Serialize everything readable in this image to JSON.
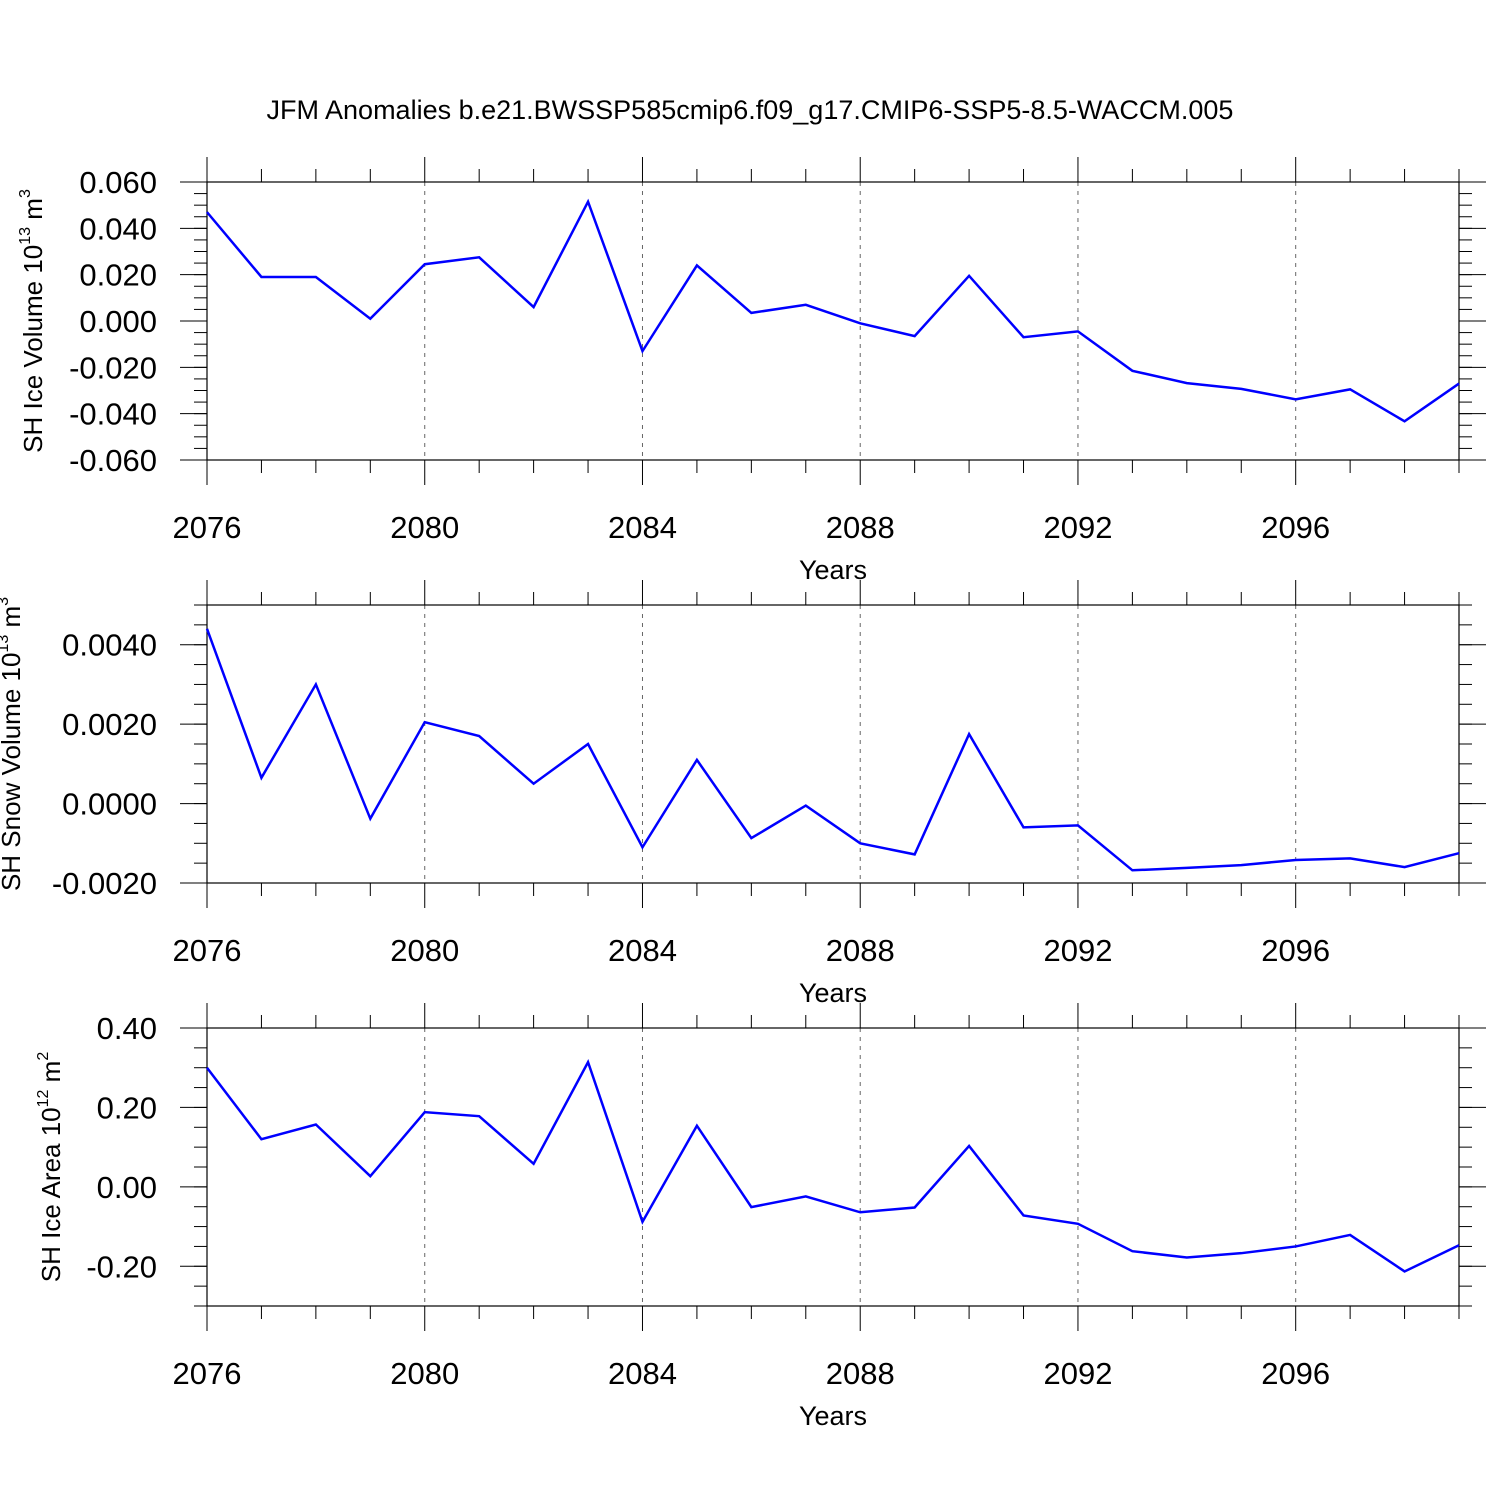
{
  "title": "JFM Anomalies b.e21.BWSSP585cmip6.f09_g17.CMIP6-SSP5-8.5-WACCM.005",
  "line_color": "#0000ff",
  "chart_data": [
    {
      "type": "line",
      "ylabel": "SH Ice Volume 10",
      "ylabel_exp": "13",
      "ylabel_unit": " m",
      "ylabel_unit_exp": "3",
      "xlabel": "Years",
      "xlim": [
        2076,
        2099
      ],
      "ylim": [
        -0.06,
        0.06
      ],
      "x_ticks": [
        "2076",
        "2080",
        "2084",
        "2088",
        "2092",
        "2096"
      ],
      "y_ticks": [
        "0.060",
        "0.040",
        "0.020",
        "0.000",
        "-0.020",
        "-0.040",
        "-0.060"
      ],
      "series": [
        {
          "x": [
            2076,
            2077,
            2078,
            2079,
            2080,
            2081,
            2082,
            2083,
            2084,
            2085,
            2086,
            2087,
            2088,
            2089,
            2090,
            2091,
            2092,
            2093,
            2094,
            2095,
            2096,
            2097,
            2098,
            2099
          ],
          "values": [
            0.047,
            0.019,
            0.019,
            0.001,
            0.0245,
            0.0275,
            0.006,
            0.0515,
            -0.013,
            0.024,
            0.0035,
            0.007,
            -0.001,
            -0.0065,
            0.0195,
            -0.007,
            -0.0045,
            -0.0215,
            -0.0268,
            -0.0293,
            -0.0338,
            -0.0295,
            -0.0433,
            -0.027
          ]
        }
      ]
    },
    {
      "type": "line",
      "ylabel": "SH Snow Volume 10",
      "ylabel_exp": "13",
      "ylabel_unit": " m",
      "ylabel_unit_exp": "3",
      "xlabel": "Years",
      "xlim": [
        2076,
        2099
      ],
      "ylim": [
        -0.002,
        0.005
      ],
      "x_ticks": [
        "2076",
        "2080",
        "2084",
        "2088",
        "2092",
        "2096"
      ],
      "y_ticks": [
        "0.0040",
        "0.0020",
        "0.0000",
        "-0.0020"
      ],
      "series": [
        {
          "x": [
            2076,
            2077,
            2078,
            2079,
            2080,
            2081,
            2082,
            2083,
            2084,
            2085,
            2086,
            2087,
            2088,
            2089,
            2090,
            2091,
            2092,
            2093,
            2094,
            2095,
            2096,
            2097,
            2098,
            2099
          ],
          "values": [
            0.0044,
            0.00065,
            0.003,
            -0.00038,
            0.00205,
            0.0017,
            0.0005,
            0.0015,
            -0.0011,
            0.0011,
            -0.00087,
            -5e-05,
            -0.001,
            -0.00128,
            0.00175,
            -0.0006,
            -0.00055,
            -0.00168,
            -0.00162,
            -0.00155,
            -0.00142,
            -0.00138,
            -0.0016,
            -0.00125
          ]
        }
      ]
    },
    {
      "type": "line",
      "ylabel": "SH Ice Area 10",
      "ylabel_exp": "12",
      "ylabel_unit": " m",
      "ylabel_unit_exp": "2",
      "xlabel": "Years",
      "xlim": [
        2076,
        2099
      ],
      "ylim": [
        -0.3,
        0.4
      ],
      "x_ticks": [
        "2076",
        "2080",
        "2084",
        "2088",
        "2092",
        "2096"
      ],
      "y_ticks": [
        "0.40",
        "0.20",
        "0.00",
        "-0.20"
      ],
      "series": [
        {
          "x": [
            2076,
            2077,
            2078,
            2079,
            2080,
            2081,
            2082,
            2083,
            2084,
            2085,
            2086,
            2087,
            2088,
            2089,
            2090,
            2091,
            2092,
            2093,
            2094,
            2095,
            2096,
            2097,
            2098,
            2099
          ],
          "values": [
            0.3,
            0.12,
            0.157,
            0.027,
            0.188,
            0.178,
            0.058,
            0.314,
            -0.088,
            0.154,
            -0.051,
            -0.024,
            -0.064,
            -0.052,
            0.103,
            -0.072,
            -0.093,
            -0.162,
            -0.178,
            -0.167,
            -0.15,
            -0.121,
            -0.213,
            -0.147
          ]
        }
      ]
    }
  ]
}
